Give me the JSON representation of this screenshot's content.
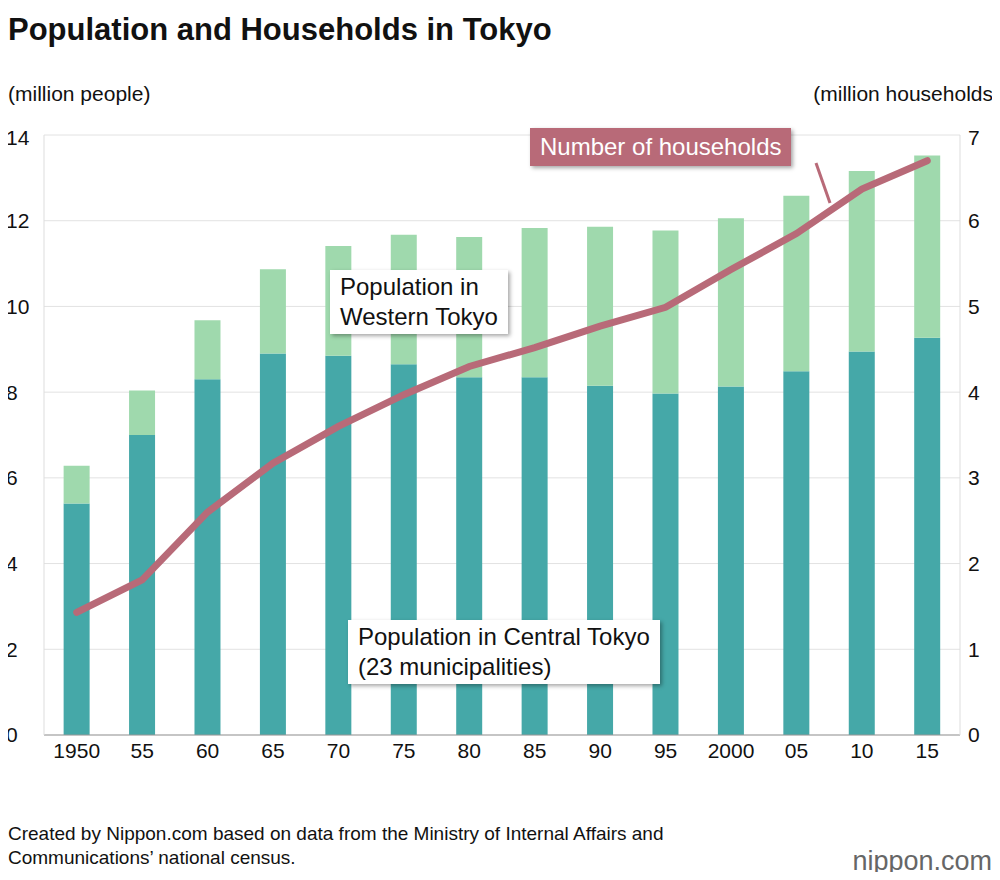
{
  "chart_data": {
    "type": "bar",
    "title": "Population and Households in Tokyo",
    "y_label": "(million people)",
    "y2_label": "(million households)",
    "categories": [
      "1950",
      "55",
      "60",
      "65",
      "70",
      "75",
      "80",
      "85",
      "90",
      "95",
      "2000",
      "05",
      "10",
      "15"
    ],
    "series": [
      {
        "name": "Population in Central Tokyo\n(23 municipalities)",
        "type": "bar",
        "color": "#45a8a8",
        "values": [
          5.4,
          7.0,
          8.3,
          8.9,
          8.85,
          8.65,
          8.35,
          8.35,
          8.15,
          7.97,
          8.13,
          8.49,
          8.95,
          9.27
        ]
      },
      {
        "name": "Population in\nWestern Tokyo",
        "type": "bar",
        "color": "#9fd9ad",
        "values": [
          0.88,
          1.04,
          1.38,
          1.97,
          2.56,
          3.02,
          3.27,
          3.48,
          3.71,
          3.8,
          3.93,
          4.09,
          4.21,
          4.25
        ]
      },
      {
        "name": "Number of households",
        "type": "line",
        "axis": "y2",
        "color": "#b86a78",
        "values": [
          1.43,
          1.81,
          2.6,
          3.17,
          3.6,
          3.97,
          4.3,
          4.52,
          4.77,
          4.99,
          5.43,
          5.85,
          6.37,
          6.7
        ]
      }
    ],
    "stacked": true,
    "grid": true,
    "ylim": [
      0,
      14
    ],
    "yticks": [
      0,
      2,
      4,
      6,
      8,
      10,
      12,
      14
    ],
    "y2lim": [
      0,
      7
    ],
    "y2ticks": [
      0,
      1,
      2,
      3,
      4,
      5,
      6,
      7
    ],
    "source": "Created by Nippon.com based on data from the Ministry of Internal Affairs and Communications’ national census.",
    "credit": "nippon.com"
  }
}
